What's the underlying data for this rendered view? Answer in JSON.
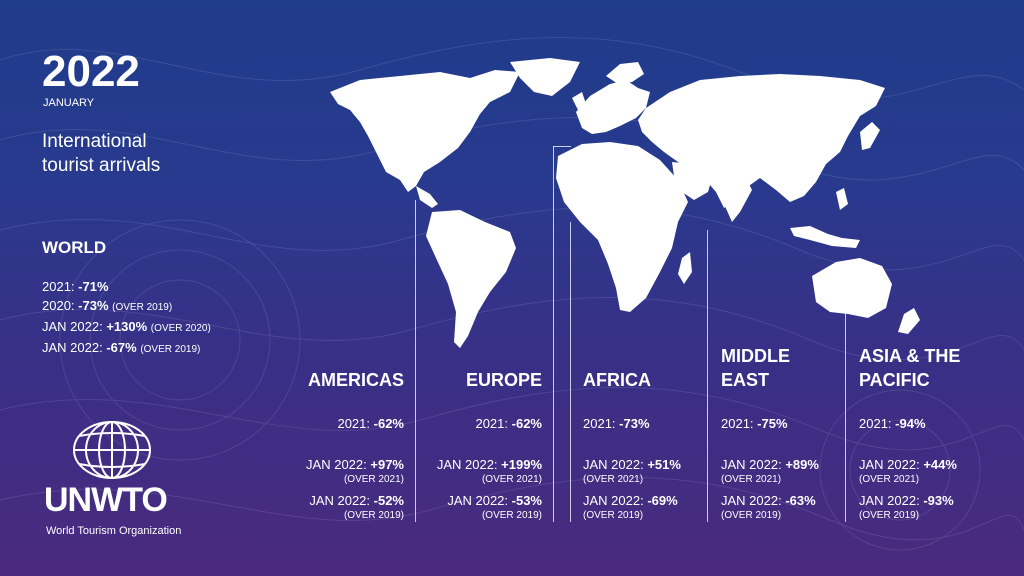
{
  "header": {
    "year": "2022",
    "month": "JANUARY",
    "subtitle_line1": "International",
    "subtitle_line2": "tourist arrivals"
  },
  "world": {
    "title": "WORLD",
    "stats": [
      {
        "label": "2021:",
        "value": "-71%",
        "note": ""
      },
      {
        "label": "2020:",
        "value": "-73%",
        "note": "(OVER 2019)"
      },
      {
        "label": "JAN 2022:",
        "value": "+130%",
        "note": "(OVER 2020)"
      },
      {
        "label": "JAN 2022:",
        "value": "-67%",
        "note": "(OVER 2019)"
      }
    ]
  },
  "regions": [
    {
      "name": "AMERICAS",
      "y2021_label": "2021:",
      "y2021": "-62%",
      "jan_a_label": "JAN 2022:",
      "jan_a": "+97%",
      "jan_a_note": "(OVER 2021)",
      "jan_b_label": "JAN 2022:",
      "jan_b": "-52%",
      "jan_b_note": "(OVER 2019)"
    },
    {
      "name": "EUROPE",
      "y2021_label": "2021:",
      "y2021": "-62%",
      "jan_a_label": "JAN 2022:",
      "jan_a": "+199%",
      "jan_a_note": "(OVER 2021)",
      "jan_b_label": "JAN 2022:",
      "jan_b": "-53%",
      "jan_b_note": "(OVER 2019)"
    },
    {
      "name": "AFRICA",
      "y2021_label": "2021:",
      "y2021": "-73%",
      "jan_a_label": "JAN 2022:",
      "jan_a": "+51%",
      "jan_a_note": "(OVER 2021)",
      "jan_b_label": "JAN 2022:",
      "jan_b": "-69%",
      "jan_b_note": "(OVER 2019)"
    },
    {
      "name_line1": "MIDDLE",
      "name_line2": "EAST",
      "y2021_label": "2021:",
      "y2021": "-75%",
      "jan_a_label": "JAN 2022:",
      "jan_a": "+89%",
      "jan_a_note": "(OVER 2021)",
      "jan_b_label": "JAN 2022:",
      "jan_b": "-63%",
      "jan_b_note": "(OVER 2019)"
    },
    {
      "name_line1": "ASIA & THE",
      "name_line2": "PACIFIC",
      "y2021_label": "2021:",
      "y2021": "-94%",
      "jan_a_label": "JAN 2022:",
      "jan_a": "+44%",
      "jan_a_note": "(OVER 2021)",
      "jan_b_label": "JAN 2022:",
      "jan_b": "-93%",
      "jan_b_note": "(OVER 2019)"
    }
  ],
  "logo": {
    "wordmark": "UNWTO",
    "org_name": "World Tourism Organization",
    "icon": "globe-icon"
  },
  "colors": {
    "background_top": "#1f3c8a",
    "background_bottom": "#4a2a7e",
    "text": "#ffffff"
  }
}
